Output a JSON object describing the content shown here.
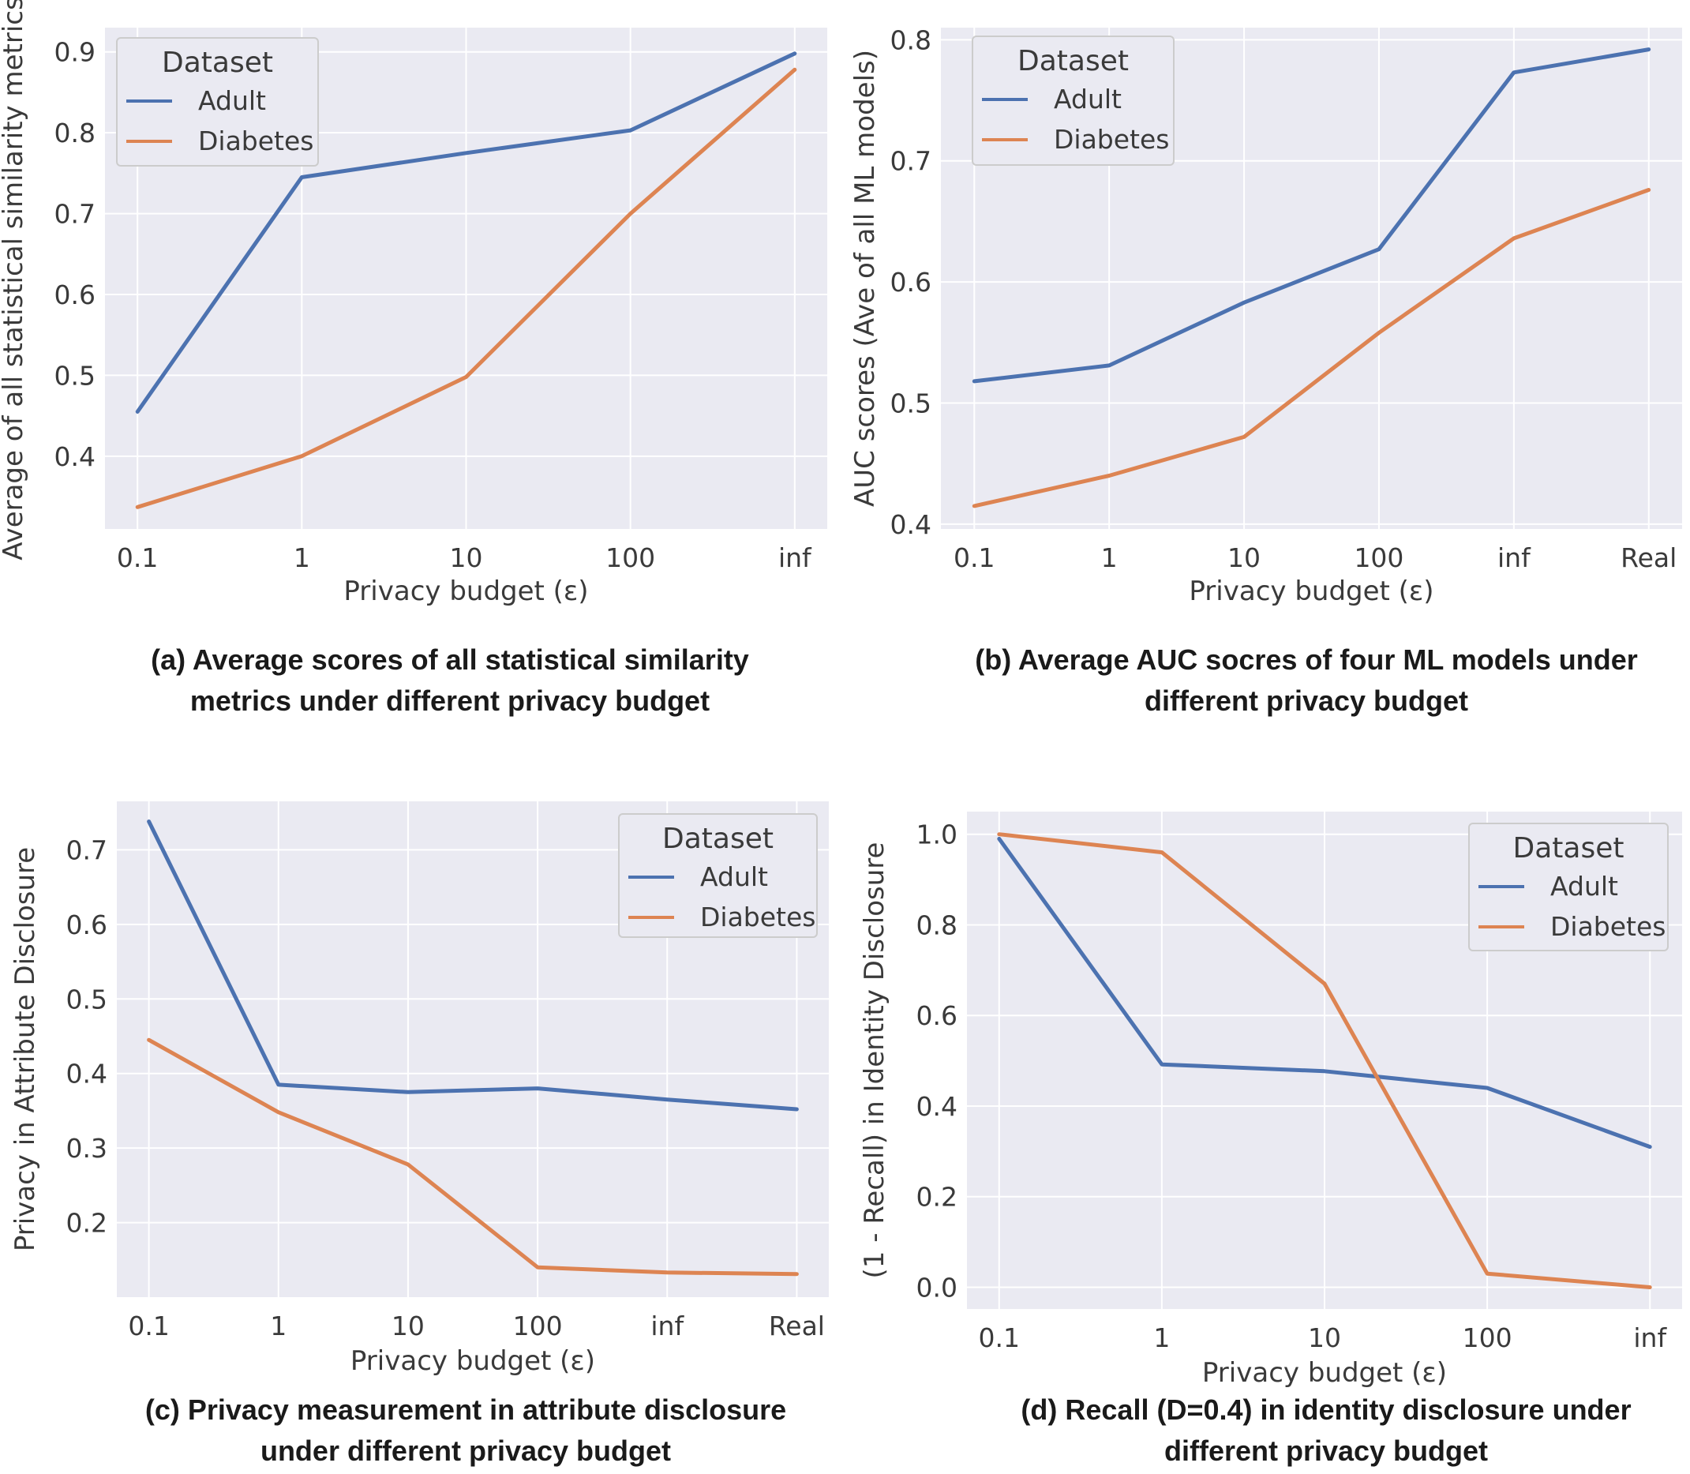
{
  "colors": {
    "adult": "#4c72b0",
    "diabetes": "#dd8452",
    "panel_bg": "#eaeaf2",
    "grid": "#ffffff"
  },
  "chart_data": [
    {
      "type": "line",
      "id": "a",
      "categories": [
        "0.1",
        "1",
        "10",
        "100",
        "inf"
      ],
      "series": [
        {
          "name": "Adult",
          "values": [
            0.455,
            0.745,
            0.775,
            0.803,
            0.898
          ]
        },
        {
          "name": "Diabetes",
          "values": [
            0.337,
            0.4,
            0.498,
            0.7,
            0.878
          ]
        }
      ],
      "xlabel": "Privacy budget (ε)",
      "ylabel": "Average of all statistical similarity metrics",
      "ylim": [
        0.31,
        0.93
      ],
      "yticks": [
        0.4,
        0.5,
        0.6,
        0.7,
        0.8,
        0.9
      ],
      "ytick_labels": [
        "0.4",
        "0.5",
        "0.6",
        "0.7",
        "0.8",
        "0.9"
      ],
      "legend_title": "Dataset",
      "legend_position": "top-left",
      "caption_lines": [
        "(a) Average scores of all statistical similarity",
        "metrics under different privacy budget"
      ]
    },
    {
      "type": "line",
      "id": "b",
      "categories": [
        "0.1",
        "1",
        "10",
        "100",
        "inf",
        "Real"
      ],
      "series": [
        {
          "name": "Adult",
          "values": [
            0.518,
            0.531,
            0.583,
            0.627,
            0.773,
            0.792
          ]
        },
        {
          "name": "Diabetes",
          "values": [
            0.415,
            0.44,
            0.472,
            0.558,
            0.636,
            0.676
          ]
        }
      ],
      "xlabel": "Privacy budget (ε)",
      "ylabel": "AUC scores (Ave of all ML models)",
      "ylim": [
        0.396,
        0.81
      ],
      "yticks": [
        0.4,
        0.5,
        0.6,
        0.7,
        0.8
      ],
      "ytick_labels": [
        "0.4",
        "0.5",
        "0.6",
        "0.7",
        "0.8"
      ],
      "legend_title": "Dataset",
      "legend_position": "top-left",
      "caption_lines": [
        "(b) Average AUC socres of four ML models under",
        "different privacy budget"
      ]
    },
    {
      "type": "line",
      "id": "c",
      "categories": [
        "0.1",
        "1",
        "10",
        "100",
        "inf",
        "Real"
      ],
      "series": [
        {
          "name": "Adult",
          "values": [
            0.738,
            0.385,
            0.375,
            0.38,
            0.365,
            0.352
          ]
        },
        {
          "name": "Diabetes",
          "values": [
            0.445,
            0.348,
            0.278,
            0.14,
            0.133,
            0.131
          ]
        }
      ],
      "xlabel": "Privacy budget (ε)",
      "ylabel": "Privacy in Attribute Disclosure",
      "ylim": [
        0.1,
        0.765
      ],
      "yticks": [
        0.2,
        0.3,
        0.4,
        0.5,
        0.6,
        0.7
      ],
      "ytick_labels": [
        "0.2",
        "0.3",
        "0.4",
        "0.5",
        "0.6",
        "0.7"
      ],
      "legend_title": "Dataset",
      "legend_position": "top-right",
      "caption_lines": [
        "(c) Privacy measurement in attribute disclosure",
        "under different privacy budget"
      ]
    },
    {
      "type": "line",
      "id": "d",
      "categories": [
        "0.1",
        "1",
        "10",
        "100",
        "inf"
      ],
      "series": [
        {
          "name": "Adult",
          "values": [
            0.99,
            0.492,
            0.477,
            0.44,
            0.31
          ]
        },
        {
          "name": "Diabetes",
          "values": [
            1.0,
            0.96,
            0.67,
            0.03,
            0.0
          ]
        }
      ],
      "xlabel": "Privacy budget (ε)",
      "ylabel": "(1 - Recall) in Identity Disclosure",
      "ylim": [
        -0.048,
        1.05
      ],
      "yticks": [
        0.0,
        0.2,
        0.4,
        0.6,
        0.8,
        1.0
      ],
      "ytick_labels": [
        "0.0",
        "0.2",
        "0.4",
        "0.6",
        "0.8",
        "1.0"
      ],
      "legend_title": "Dataset",
      "legend_position": "top-right",
      "caption_lines": [
        "(d) Recall (D=0.4) in identity disclosure under",
        "different privacy budget"
      ]
    }
  ]
}
